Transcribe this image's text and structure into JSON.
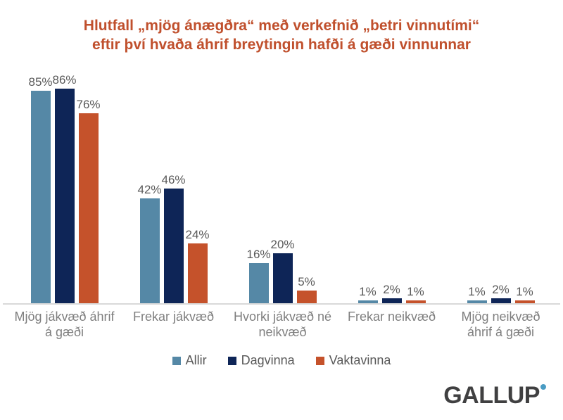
{
  "chart_data": {
    "type": "bar",
    "title": "Hlutfall „mjög ánægðra“ með verkefnið „betri vinnutími“ eftir því hvaða áhrif breytingin hafði á gæði vinnunnar",
    "categories": [
      "Mjög jákvæð áhrif á gæði",
      "Frekar jákvæð",
      "Hvorki jákvæð né neikvæð",
      "Frekar neikvæð",
      "Mjög neikvæð áhrif á gæði"
    ],
    "series": [
      {
        "name": "Allir",
        "color": "#5588A6",
        "values": [
          85,
          42,
          16,
          1,
          1
        ]
      },
      {
        "name": "Dagvinna",
        "color": "#0E2557",
        "values": [
          86,
          46,
          20,
          2,
          2
        ]
      },
      {
        "name": "Vaktavinna",
        "color": "#C5522B",
        "values": [
          76,
          24,
          5,
          1,
          1
        ]
      }
    ],
    "value_suffix": "%",
    "xlabel": "",
    "ylabel": "",
    "ylim": [
      0,
      90
    ],
    "grid": false,
    "axis_visible": false,
    "legend_position": "bottom"
  },
  "style_colors": {
    "title": "#C0502D",
    "data_label": "#595959",
    "category_label": "#7F7F7F",
    "axis_line": "#D9D9D9",
    "logo_text": "#404041",
    "logo_dot": "#4A9CC4"
  },
  "logo": {
    "text": "GALLUP"
  }
}
